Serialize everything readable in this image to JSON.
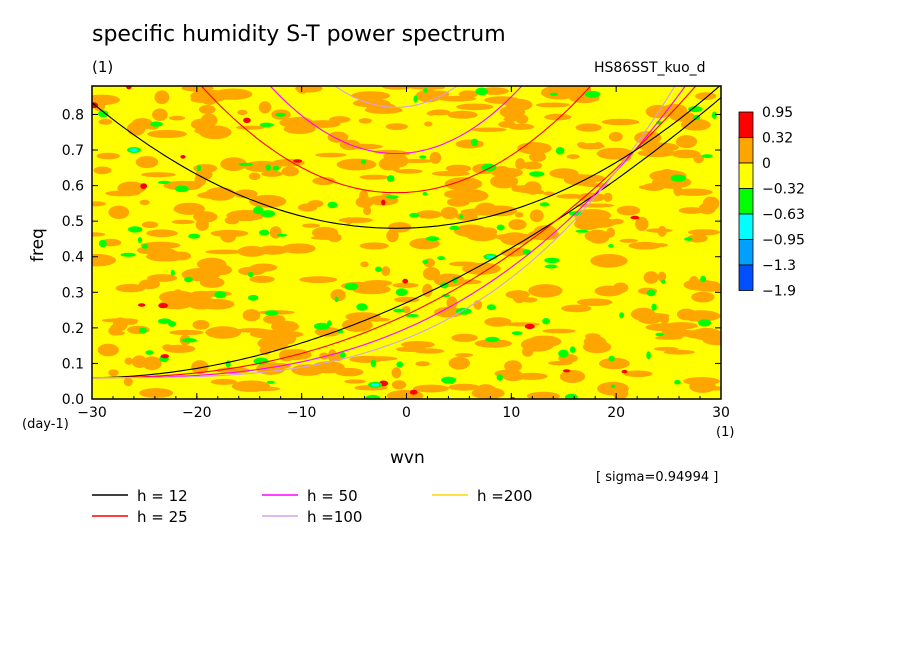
{
  "chart_data": {
    "type": "heatmap",
    "title": "specific humidity S-T power spectrum",
    "units_label": "(1)",
    "run_name": "HS86SST_kuo_d",
    "xlabel": "wvn",
    "ylabel": "freq",
    "x_unit": "(1)",
    "y_unit": "(day-1)",
    "xlim": [
      -30,
      30
    ],
    "ylim": [
      0.0,
      0.88
    ],
    "x_ticks": [
      -30,
      -20,
      -10,
      0,
      10,
      20,
      30
    ],
    "x_tick_labels": [
      "−30",
      "−20",
      "−10",
      "0",
      "10",
      "20",
      "30"
    ],
    "y_ticks": [
      0.0,
      0.1,
      0.2,
      0.3,
      0.4,
      0.5,
      0.6,
      0.7,
      0.8
    ],
    "y_tick_labels": [
      "0.0",
      "0.1",
      "0.2",
      "0.3",
      "0.4",
      "0.5",
      "0.6",
      "0.7",
      "0.8"
    ],
    "colorbar": {
      "levels": [
        "0.95",
        "0.32",
        "0",
        "−0.32",
        "−0.63",
        "−0.95",
        "−1.3",
        "−1.9"
      ],
      "colors": [
        "#ff0000",
        "#ffa500",
        "#ffff00",
        "#00ff00",
        "#00ffff",
        "#00a0ff",
        "#0050ff"
      ]
    },
    "dominant_color": "#ffff00",
    "curves": [
      {
        "label": "h = 12",
        "color": "#000000",
        "family": "gravity_wave_and_kelvin",
        "apex": [
          -1,
          0.48
        ]
      },
      {
        "label": "h = 25",
        "color": "#ff0000",
        "family": "gravity_wave_and_kelvin",
        "apex": [
          -1,
          0.58
        ]
      },
      {
        "label": "h = 50",
        "color": "#ff00ff",
        "family": "gravity_wave_and_kelvin",
        "apex": [
          -1,
          0.69
        ]
      },
      {
        "label": "h =100",
        "color": "#d4a0e8",
        "family": "gravity_wave_and_kelvin",
        "apex": [
          -1,
          0.82
        ]
      },
      {
        "label": "h =200",
        "color": "#ffd700",
        "family": "gravity_wave_and_kelvin"
      }
    ],
    "sigma_label": "[ sigma=0.94994 ]",
    "grid": false
  }
}
